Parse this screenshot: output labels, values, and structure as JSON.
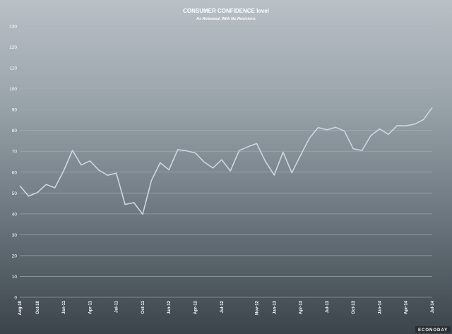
{
  "chart_data": {
    "type": "line",
    "title": "CONSUMER CONFIDENCE level",
    "subtitle": "As Released, With No Revisions",
    "brand": "ECONODAY",
    "yticks": [
      0,
      10,
      20,
      30,
      40,
      50,
      60,
      70,
      80,
      90,
      100,
      110,
      120,
      130
    ],
    "ylim": [
      0,
      130
    ],
    "grid": true,
    "colors": {
      "line": "#c9d8e4",
      "grid": "#a7b0b7",
      "text": "#ffffff"
    },
    "xtick_labels": [
      "Aug-10",
      "Oct-10",
      "Jan-11",
      "Apr-11",
      "Jul-11",
      "Oct-11",
      "Jan-12",
      "Apr-12",
      "Jul-12",
      "Nov-12",
      "Jan-13",
      "Apr-13",
      "Jul-13",
      "Oct-13",
      "Jan-14",
      "Apr-14",
      "Jul-14"
    ],
    "xtick_index": [
      0,
      2,
      5,
      8,
      11,
      14,
      17,
      20,
      23,
      27,
      29,
      32,
      35,
      38,
      41,
      44,
      47
    ],
    "series": [
      {
        "values": [
          53.5,
          48.5,
          50.2,
          54.1,
          52.5,
          60.6,
          70.4,
          63.4,
          65.4,
          61.0,
          58.5,
          59.5,
          44.5,
          45.4,
          39.8,
          56.0,
          64.5,
          61.1,
          70.8,
          70.2,
          69.2,
          64.9,
          62.0,
          65.9,
          60.6,
          70.3,
          72.2,
          73.7,
          65.1,
          58.6,
          69.6,
          59.7,
          68.1,
          76.2,
          81.4,
          80.3,
          81.5,
          79.7,
          71.2,
          70.4,
          77.5,
          80.7,
          78.1,
          82.3,
          82.2,
          83.0,
          85.2,
          90.9
        ]
      }
    ]
  }
}
